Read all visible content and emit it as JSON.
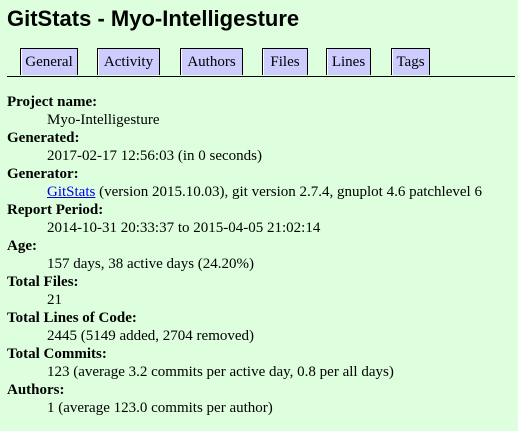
{
  "header": {
    "title": "GitStats - Myo-Intelligesture"
  },
  "nav": {
    "tabs": [
      {
        "label": "General"
      },
      {
        "label": "Activity"
      },
      {
        "label": "Authors"
      },
      {
        "label": "Files"
      },
      {
        "label": "Lines"
      },
      {
        "label": "Tags"
      }
    ]
  },
  "info": {
    "project_name": {
      "label": "Project name:",
      "value": "Myo-Intelligesture"
    },
    "generated": {
      "label": "Generated:",
      "value": "2017-02-17 12:56:03 (in 0 seconds)"
    },
    "generator": {
      "label": "Generator:",
      "link": "GitStats",
      "rest": " (version 2015.10.03), git version 2.7.4, gnuplot 4.6 patchlevel 6"
    },
    "report_period": {
      "label": "Report Period:",
      "value": "2014-10-31 20:33:37 to 2015-04-05 21:02:14"
    },
    "age": {
      "label": "Age:",
      "value": "157 days, 38 active days (24.20%)"
    },
    "total_files": {
      "label": "Total Files:",
      "value": "21"
    },
    "total_loc": {
      "label": "Total Lines of Code:",
      "value": "2445 (5149 added, 2704 removed)"
    },
    "total_commits": {
      "label": "Total Commits:",
      "value": "123 (average 3.2 commits per active day, 0.8 per all days)"
    },
    "authors": {
      "label": "Authors:",
      "value": "1 (average 123.0 commits per author)"
    }
  }
}
